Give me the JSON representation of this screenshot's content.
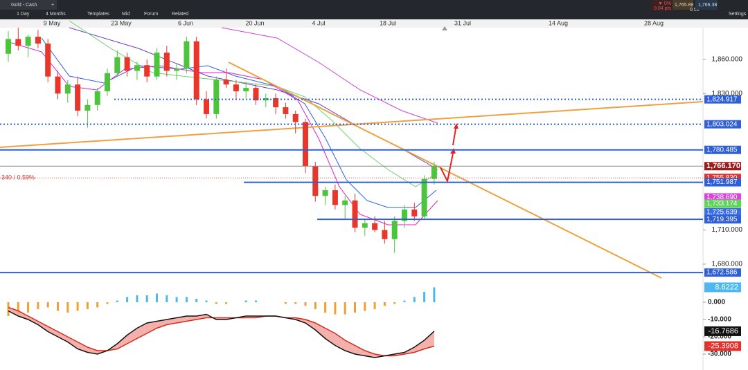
{
  "toolbar": {
    "instrument": "Gold - Cash",
    "interval": "1 Day",
    "range": "4 Months",
    "buttons": [
      "Templates",
      "Mid",
      "Forum",
      "Related"
    ],
    "change": "▼ 0%",
    "change_pts": "0.04 pts",
    "bid": "1,765.88",
    "spread": "0.50",
    "ask": "1,766.38",
    "settings": "Settings"
  },
  "chart": {
    "dates": [
      "9 May",
      "23 May",
      "6 Jun",
      "20 Jun",
      "4 Jul",
      "18 Jul",
      "31 Jul",
      "14 Aug",
      "28 Aug"
    ],
    "price_ticks": [
      {
        "value": 1860,
        "label": "1,860.000"
      },
      {
        "value": 1830,
        "label": "1,830.000"
      },
      {
        "value": 1710,
        "label": "1,710.000"
      },
      {
        "value": 1680,
        "label": "1,680.000"
      }
    ],
    "change_label": "340 / 0.59%",
    "candles": [
      [
        1865,
        1885,
        1858,
        1878
      ],
      [
        1878,
        1888,
        1868,
        1872
      ],
      [
        1872,
        1882,
        1862,
        1880
      ],
      [
        1880,
        1886,
        1870,
        1874
      ],
      [
        1874,
        1878,
        1840,
        1845
      ],
      [
        1845,
        1850,
        1825,
        1830
      ],
      [
        1830,
        1842,
        1822,
        1838
      ],
      [
        1838,
        1845,
        1810,
        1815
      ],
      [
        1815,
        1825,
        1800,
        1820
      ],
      [
        1820,
        1835,
        1815,
        1832
      ],
      [
        1832,
        1852,
        1828,
        1848
      ],
      [
        1848,
        1868,
        1845,
        1862
      ],
      [
        1862,
        1866,
        1845,
        1850
      ],
      [
        1850,
        1858,
        1842,
        1855
      ],
      [
        1855,
        1860,
        1840,
        1845
      ],
      [
        1845,
        1870,
        1842,
        1866
      ],
      [
        1866,
        1872,
        1845,
        1850
      ],
      [
        1850,
        1856,
        1842,
        1852
      ],
      [
        1852,
        1880,
        1848,
        1876
      ],
      [
        1876,
        1880,
        1820,
        1825
      ],
      [
        1825,
        1832,
        1808,
        1812
      ],
      [
        1812,
        1845,
        1808,
        1842
      ],
      [
        1842,
        1852,
        1835,
        1838
      ],
      [
        1838,
        1842,
        1825,
        1832
      ],
      [
        1832,
        1840,
        1826,
        1835
      ],
      [
        1835,
        1838,
        1820,
        1824
      ],
      [
        1824,
        1830,
        1818,
        1826
      ],
      [
        1826,
        1830,
        1812,
        1818
      ],
      [
        1818,
        1822,
        1808,
        1812
      ],
      [
        1812,
        1815,
        1795,
        1805
      ],
      [
        1805,
        1808,
        1760,
        1766
      ],
      [
        1766,
        1770,
        1735,
        1740
      ],
      [
        1740,
        1748,
        1732,
        1745
      ],
      [
        1745,
        1750,
        1728,
        1732
      ],
      [
        1732,
        1740,
        1720,
        1736
      ],
      [
        1736,
        1742,
        1708,
        1712
      ],
      [
        1712,
        1720,
        1705,
        1716
      ],
      [
        1716,
        1722,
        1708,
        1710
      ],
      [
        1710,
        1718,
        1698,
        1702
      ],
      [
        1702,
        1722,
        1690,
        1718
      ],
      [
        1718,
        1732,
        1712,
        1728
      ],
      [
        1728,
        1734,
        1718,
        1722
      ],
      [
        1722,
        1758,
        1720,
        1755
      ],
      [
        1755,
        1770,
        1750,
        1766
      ]
    ],
    "levels": [
      {
        "value": 1824.917,
        "label": "1,824.917",
        "color": "#2f5fd6",
        "line": "dotted"
      },
      {
        "value": 1803.024,
        "label": "1,803.024",
        "color": "#2f5fd6",
        "line": "dotted"
      },
      {
        "value": 1780.485,
        "label": "1,780.485",
        "color": "#2f5fd6",
        "line": "solid"
      },
      {
        "value": 1766.17,
        "label": "1,766.170",
        "color": "#9b1c1c",
        "line": "gray"
      },
      {
        "value": 1755.83,
        "label": "1,755.830",
        "color": "#e0322b",
        "line": "reddot"
      },
      {
        "value": 1751.987,
        "label": "1,751.987",
        "color": "#2f5fd6",
        "line": "solid"
      },
      {
        "value": 1738.69,
        "label": "1,738.690",
        "color": "#e040e0",
        "line": "none"
      },
      {
        "value": 1733.174,
        "label": "1,733.174",
        "color": "#5fd35a",
        "line": "none"
      },
      {
        "value": 1725.639,
        "label": "1,725.639",
        "color": "#3a6ee8",
        "line": "none"
      },
      {
        "value": 1719.395,
        "label": "1,719.395",
        "color": "#2f5fd6",
        "line": "solid"
      },
      {
        "value": 1672.586,
        "label": "1,672.586",
        "color": "#2f5fd6",
        "line": "solid"
      }
    ],
    "indicator": {
      "ticks": [
        {
          "value": 0,
          "label": "0.000"
        },
        {
          "value": -10,
          "label": "-10.000"
        },
        {
          "value": -20,
          "label": "-20.000"
        },
        {
          "value": -30,
          "label": "-30.000"
        }
      ],
      "histogram": [
        -8,
        -7,
        -6,
        -4,
        -3,
        -5,
        -6,
        -5,
        -4,
        -3,
        -1,
        1,
        3,
        4,
        4,
        5,
        4,
        3,
        3,
        2,
        1,
        -1,
        -1,
        0,
        1,
        1,
        0,
        0,
        -1,
        -1,
        -2,
        -4,
        -6,
        -7,
        -7,
        -6,
        -5,
        -4,
        -2,
        -1,
        1,
        3,
        6,
        8.6222
      ],
      "macd": [
        -5,
        -8,
        -10,
        -13,
        -17,
        -20,
        -23,
        -27,
        -29,
        -30,
        -28,
        -24,
        -19,
        -15,
        -12,
        -11,
        -10,
        -9,
        -8,
        -8,
        -7,
        -10,
        -10,
        -9,
        -8,
        -8,
        -8,
        -8,
        -9,
        -10,
        -12,
        -16,
        -21,
        -25,
        -28,
        -30,
        -31,
        -32,
        -31,
        -30,
        -29,
        -26,
        -22,
        -16.7686
      ],
      "signal": [
        -3,
        -5,
        -8,
        -11,
        -14,
        -17,
        -20,
        -23,
        -26,
        -28,
        -28,
        -27,
        -24,
        -21,
        -18,
        -15,
        -13,
        -12,
        -11,
        -10,
        -9,
        -9,
        -9,
        -9,
        -9,
        -9,
        -8,
        -8,
        -9,
        -9,
        -10,
        -12,
        -15,
        -18,
        -22,
        -25,
        -28,
        -30,
        -31,
        -31,
        -30,
        -29,
        -27,
        -25.3908
      ]
    }
  }
}
